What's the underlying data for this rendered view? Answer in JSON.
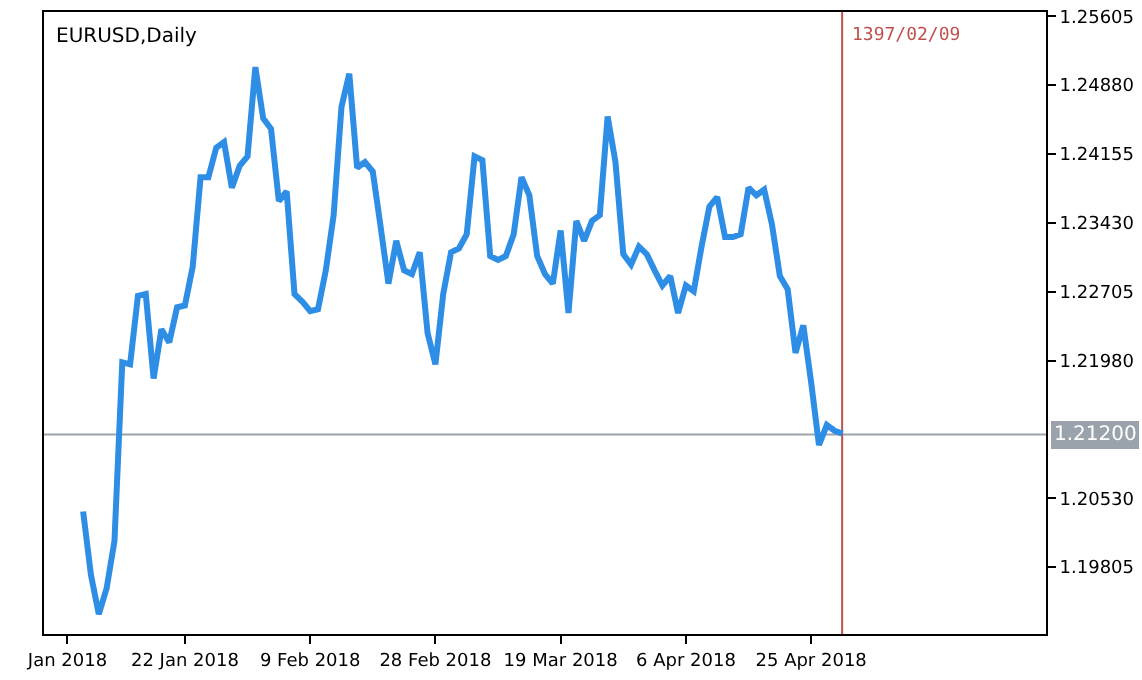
{
  "chart_data": {
    "type": "line",
    "title": "EURUSD,Daily",
    "x": [
      "2018-01-07",
      "2018-01-08",
      "2018-01-09",
      "2018-01-10",
      "2018-01-11",
      "2018-01-12",
      "2018-01-14",
      "2018-01-15",
      "2018-01-16",
      "2018-01-17",
      "2018-01-18",
      "2018-01-19",
      "2018-01-21",
      "2018-01-22",
      "2018-01-23",
      "2018-01-24",
      "2018-01-25",
      "2018-01-26",
      "2018-01-28",
      "2018-01-29",
      "2018-01-30",
      "2018-01-31",
      "2018-02-01",
      "2018-02-02",
      "2018-02-04",
      "2018-02-05",
      "2018-02-06",
      "2018-02-07",
      "2018-02-08",
      "2018-02-09",
      "2018-02-11",
      "2018-02-12",
      "2018-02-13",
      "2018-02-14",
      "2018-02-15",
      "2018-02-16",
      "2018-02-18",
      "2018-02-19",
      "2018-02-20",
      "2018-02-21",
      "2018-02-22",
      "2018-02-23",
      "2018-02-25",
      "2018-02-26",
      "2018-02-27",
      "2018-02-28",
      "2018-03-01",
      "2018-03-02",
      "2018-03-04",
      "2018-03-05",
      "2018-03-06",
      "2018-03-07",
      "2018-03-08",
      "2018-03-09",
      "2018-03-11",
      "2018-03-12",
      "2018-03-13",
      "2018-03-14",
      "2018-03-15",
      "2018-03-16",
      "2018-03-18",
      "2018-03-19",
      "2018-03-20",
      "2018-03-21",
      "2018-03-22",
      "2018-03-23",
      "2018-03-25",
      "2018-03-26",
      "2018-03-27",
      "2018-03-28",
      "2018-03-29",
      "2018-03-30",
      "2018-04-01",
      "2018-04-02",
      "2018-04-03",
      "2018-04-04",
      "2018-04-05",
      "2018-04-06",
      "2018-04-08",
      "2018-04-09",
      "2018-04-10",
      "2018-04-11",
      "2018-04-12",
      "2018-04-13",
      "2018-04-15",
      "2018-04-16",
      "2018-04-17",
      "2018-04-18",
      "2018-04-19",
      "2018-04-20",
      "2018-04-22",
      "2018-04-23",
      "2018-04-24",
      "2018-04-25",
      "2018-04-26",
      "2018-04-27",
      "2018-04-29",
      "2018-04-30"
    ],
    "series": [
      {
        "color": "#2e8ee6",
        "values": [
          1.2039,
          1.1972,
          1.1931,
          1.1958,
          1.2008,
          1.2196,
          1.2194,
          1.2266,
          1.2268,
          1.2179,
          1.2231,
          1.2217,
          1.2254,
          1.2256,
          1.2297,
          1.2391,
          1.2391,
          1.2422,
          1.2428,
          1.238,
          1.2403,
          1.2413,
          1.2507,
          1.2453,
          1.2442,
          1.2366,
          1.2376,
          1.2268,
          1.226,
          1.225,
          1.2252,
          1.2293,
          1.2351,
          1.2465,
          1.25,
          1.2401,
          1.2407,
          1.2397,
          1.2339,
          1.2279,
          1.2324,
          1.2293,
          1.2289,
          1.2312,
          1.2227,
          1.2194,
          1.2268,
          1.2312,
          1.2316,
          1.2331,
          1.2413,
          1.2409,
          1.2308,
          1.2304,
          1.2308,
          1.2331,
          1.2391,
          1.2372,
          1.2308,
          1.2289,
          1.2279,
          1.2335,
          1.2248,
          1.2345,
          1.2324,
          1.2345,
          1.2351,
          1.2455,
          1.2407,
          1.231,
          1.2299,
          1.2318,
          1.231,
          1.2293,
          1.2277,
          1.2287,
          1.2248,
          1.2277,
          1.2271,
          1.2318,
          1.236,
          1.237,
          1.2328,
          1.2328,
          1.2331,
          1.238,
          1.2372,
          1.2378,
          1.2341,
          1.2287,
          1.2273,
          1.2206,
          1.2235,
          1.2175,
          1.2109,
          1.213,
          1.2124,
          1.2121
        ]
      }
    ],
    "xlim": [
      "2018-01-01",
      "2018-05-30"
    ],
    "xticks": [
      {
        "value": "2018-01-04",
        "label": "Jan 2018"
      },
      {
        "value": "2018-01-22",
        "label": "22 Jan 2018"
      },
      {
        "value": "2018-02-09",
        "label": "9 Feb 2018"
      },
      {
        "value": "2018-02-28",
        "label": "28 Feb 2018"
      },
      {
        "value": "2018-03-19",
        "label": "19 Mar 2018"
      },
      {
        "value": "2018-04-06",
        "label": "6 Apr 2018"
      },
      {
        "value": "2018-04-25",
        "label": "25 Apr 2018"
      }
    ],
    "ylim": [
      1.191,
      1.2565
    ],
    "yticks": [
      1.19805,
      {
        "value": 1.2053,
        "label": "1.20530"
      },
      {
        "value": 1.2198,
        "label": "1.21980"
      },
      1.22705,
      {
        "value": 1.2343,
        "label": "1.23430"
      },
      1.24155,
      {
        "value": 1.2488,
        "label": "1.24880"
      },
      1.25605
    ],
    "ref_lines": [
      {
        "axis": "y",
        "value": 1.212,
        "label": "1.21200",
        "color": "#9aa3ab"
      },
      {
        "axis": "x",
        "value": "2018-04-29T23:00",
        "label": "1397/02/09",
        "color": "#c0504d"
      }
    ],
    "grid": false,
    "line_style": "solid",
    "marker": "none"
  }
}
